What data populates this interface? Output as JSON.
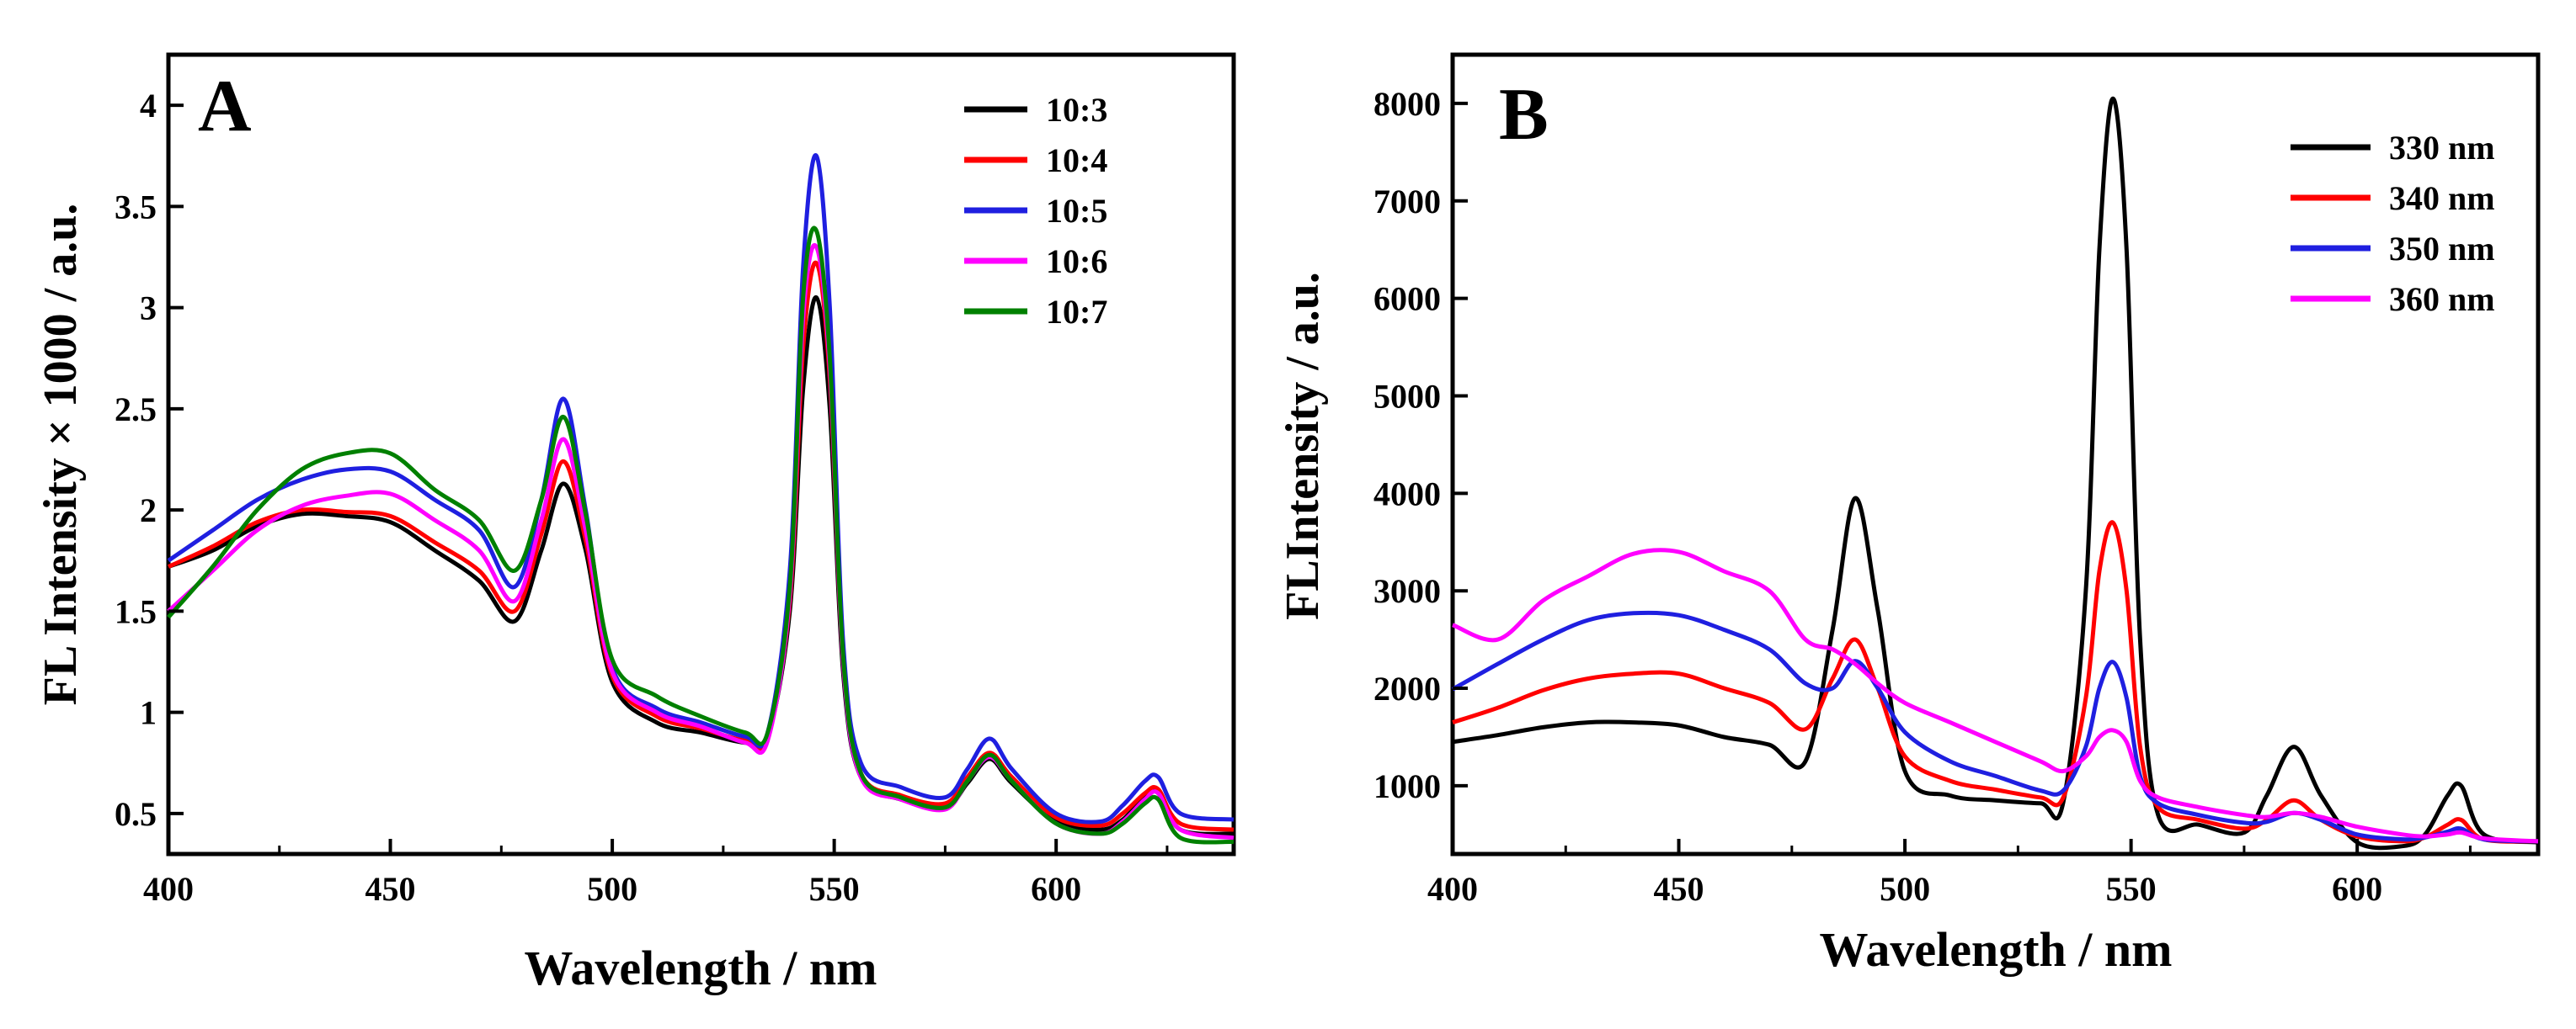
{
  "chart_data": [
    {
      "type": "line",
      "panel_label": "A",
      "xlabel": "Wavelength / nm",
      "ylabel": "FL Intensity × 1000 / a.u.",
      "xlim": [
        400,
        640
      ],
      "ylim": [
        0.3,
        4.25
      ],
      "xticks": [
        400,
        450,
        500,
        550,
        600
      ],
      "yticks": [
        0.5,
        1,
        1.5,
        2,
        2.5,
        3,
        3.5,
        4
      ],
      "xtick_labels": [
        "400",
        "450",
        "500",
        "550",
        "600"
      ],
      "ytick_labels": [
        "0.5",
        "1",
        "1.5",
        "2",
        "2.5",
        "3",
        "3.5",
        "4"
      ],
      "legend_position": "top-right",
      "x": [
        400,
        410,
        420,
        430,
        440,
        450,
        460,
        470,
        478,
        484,
        489,
        494,
        500,
        510,
        520,
        530,
        535,
        540,
        543,
        546,
        549,
        552,
        556,
        565,
        575,
        580,
        585,
        590,
        600,
        610,
        615,
        620,
        623,
        628,
        640
      ],
      "series": [
        {
          "name": "10:3",
          "color": "#000000",
          "values": [
            1.72,
            1.8,
            1.92,
            1.98,
            1.97,
            1.94,
            1.8,
            1.65,
            1.45,
            1.8,
            2.13,
            1.8,
            1.15,
            0.95,
            0.9,
            0.85,
            0.88,
            1.5,
            2.6,
            3.05,
            2.5,
            1.2,
            0.68,
            0.57,
            0.53,
            0.65,
            0.77,
            0.65,
            0.46,
            0.42,
            0.47,
            0.58,
            0.6,
            0.42,
            0.4
          ]
        },
        {
          "name": "10:4",
          "color": "#ff0000",
          "values": [
            1.72,
            1.82,
            1.94,
            2.0,
            1.99,
            1.97,
            1.84,
            1.7,
            1.5,
            1.88,
            2.24,
            1.85,
            1.18,
            0.98,
            0.92,
            0.86,
            0.88,
            1.55,
            2.8,
            3.22,
            2.65,
            1.25,
            0.7,
            0.59,
            0.55,
            0.68,
            0.8,
            0.68,
            0.48,
            0.44,
            0.5,
            0.6,
            0.62,
            0.45,
            0.42
          ]
        },
        {
          "name": "10:5",
          "color": "#1f1fe0",
          "values": [
            1.75,
            1.9,
            2.05,
            2.15,
            2.2,
            2.19,
            2.05,
            1.9,
            1.62,
            2.05,
            2.55,
            2.0,
            1.22,
            1.02,
            0.95,
            0.88,
            0.9,
            1.7,
            3.2,
            3.75,
            3.0,
            1.35,
            0.75,
            0.63,
            0.58,
            0.72,
            0.87,
            0.72,
            0.5,
            0.46,
            0.54,
            0.66,
            0.68,
            0.5,
            0.47
          ]
        },
        {
          "name": "10:6",
          "color": "#ff00ff",
          "values": [
            1.5,
            1.7,
            1.9,
            2.02,
            2.07,
            2.08,
            1.95,
            1.8,
            1.55,
            1.95,
            2.35,
            1.9,
            1.2,
            1.0,
            0.93,
            0.85,
            0.86,
            1.58,
            2.95,
            3.3,
            2.7,
            1.25,
            0.68,
            0.57,
            0.52,
            0.66,
            0.78,
            0.66,
            0.45,
            0.4,
            0.46,
            0.57,
            0.6,
            0.42,
            0.38
          ]
        },
        {
          "name": "10:7",
          "color": "#008000",
          "values": [
            1.47,
            1.72,
            2.0,
            2.2,
            2.28,
            2.28,
            2.1,
            1.95,
            1.7,
            2.05,
            2.46,
            1.98,
            1.26,
            1.08,
            0.98,
            0.9,
            0.9,
            1.62,
            3.05,
            3.38,
            2.75,
            1.28,
            0.7,
            0.58,
            0.53,
            0.66,
            0.79,
            0.66,
            0.45,
            0.4,
            0.45,
            0.55,
            0.57,
            0.38,
            0.36
          ]
        }
      ]
    },
    {
      "type": "line",
      "panel_label": "B",
      "xlabel": "Wavelength / nm",
      "ylabel": "FLIntensity / a.u.",
      "xlim": [
        400,
        640
      ],
      "ylim": [
        300,
        8500
      ],
      "xticks": [
        400,
        450,
        500,
        550,
        600
      ],
      "yticks": [
        1000,
        2000,
        3000,
        4000,
        5000,
        6000,
        7000,
        8000
      ],
      "xtick_labels": [
        "400",
        "450",
        "500",
        "550",
        "600"
      ],
      "ytick_labels": [
        "1000",
        "2000",
        "3000",
        "4000",
        "5000",
        "6000",
        "7000",
        "8000"
      ],
      "legend_position": "top-right",
      "x": [
        400,
        410,
        420,
        430,
        440,
        450,
        460,
        470,
        478,
        484,
        489,
        494,
        500,
        510,
        520,
        530,
        535,
        540,
        543,
        546,
        549,
        552,
        556,
        565,
        575,
        580,
        586,
        592,
        600,
        610,
        615,
        620,
        623,
        628,
        640
      ],
      "series": [
        {
          "name": "330 nm",
          "color": "#000000",
          "values": [
            1450,
            1520,
            1600,
            1650,
            1650,
            1620,
            1500,
            1420,
            1250,
            2600,
            3950,
            2800,
            1150,
            900,
            850,
            820,
            830,
            3000,
            6500,
            8050,
            6500,
            2500,
            700,
            600,
            520,
            900,
            1400,
            900,
            420,
            380,
            500,
            900,
            1000,
            500,
            420
          ]
        },
        {
          "name": "340 nm",
          "color": "#ff0000",
          "values": [
            1650,
            1800,
            1980,
            2100,
            2150,
            2150,
            2000,
            1850,
            1580,
            2100,
            2500,
            2000,
            1300,
            1050,
            960,
            880,
            880,
            1900,
            3200,
            3700,
            3000,
            1400,
            780,
            650,
            560,
            650,
            850,
            650,
            480,
            430,
            470,
            600,
            650,
            450,
            430
          ]
        },
        {
          "name": "350 nm",
          "color": "#1f1fe0",
          "values": [
            1990,
            2250,
            2500,
            2700,
            2770,
            2750,
            2600,
            2400,
            2050,
            2000,
            2280,
            2000,
            1550,
            1250,
            1100,
            950,
            950,
            1400,
            2000,
            2270,
            1900,
            1100,
            820,
            700,
            620,
            630,
            720,
            650,
            500,
            450,
            470,
            530,
            560,
            450,
            430
          ]
        },
        {
          "name": "360 nm",
          "color": "#ff00ff",
          "values": [
            2650,
            2500,
            2900,
            3150,
            3380,
            3400,
            3200,
            3000,
            2500,
            2400,
            2250,
            2050,
            1850,
            1650,
            1450,
            1250,
            1150,
            1300,
            1500,
            1570,
            1450,
            1050,
            880,
            780,
            700,
            680,
            720,
            680,
            580,
            500,
            480,
            500,
            520,
            460,
            430
          ]
        }
      ]
    }
  ]
}
